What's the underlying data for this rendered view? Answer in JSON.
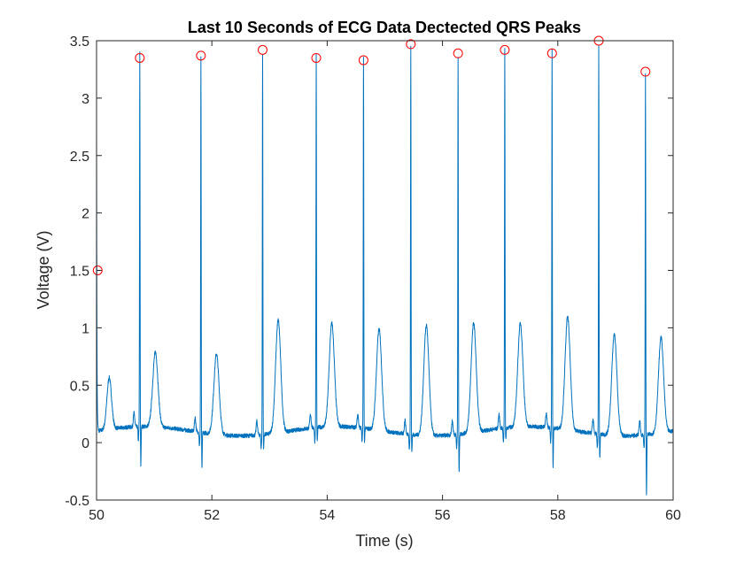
{
  "chart_data": {
    "type": "line",
    "title": "Last 10 Seconds of ECG Data Dectected QRS Peaks",
    "xlabel": "Time (s)",
    "ylabel": "Voltage (V)",
    "xlim": [
      50,
      60
    ],
    "ylim": [
      -0.5,
      3.5
    ],
    "xticks": [
      50,
      52,
      54,
      56,
      58,
      60
    ],
    "yticks": [
      -0.5,
      0,
      0.5,
      1,
      1.5,
      2,
      2.5,
      3,
      3.5
    ],
    "grid": false,
    "series": [
      {
        "kind": "ecg-line",
        "color": "#0072BD",
        "start_value": 2.7,
        "baseline_value": 0.1,
        "beats": [
          {
            "t": 50.75,
            "r": 3.35,
            "s": -0.24,
            "t_wave": 0.75
          },
          {
            "t": 51.81,
            "r": 3.37,
            "s": -0.22,
            "t_wave": 0.8
          },
          {
            "t": 52.88,
            "r": 3.42,
            "s": -0.01,
            "t_wave": 1.08
          },
          {
            "t": 53.81,
            "r": 3.35,
            "s": -0.02,
            "t_wave": 1.0
          },
          {
            "t": 54.63,
            "r": 3.33,
            "s": -0.01,
            "t_wave": 0.98
          },
          {
            "t": 55.45,
            "r": 3.47,
            "s": -0.05,
            "t_wave": 1.06
          },
          {
            "t": 56.27,
            "r": 3.39,
            "s": -0.24,
            "t_wave": 1.05
          },
          {
            "t": 57.08,
            "r": 3.42,
            "s": -0.01,
            "t_wave": 1.0
          },
          {
            "t": 57.9,
            "r": 3.39,
            "s": -0.24,
            "t_wave": 1.08
          },
          {
            "t": 58.71,
            "r": 3.5,
            "s": -0.12,
            "t_wave": 0.98
          },
          {
            "t": 59.52,
            "r": 3.23,
            "s": -0.42,
            "t_wave": 0.93
          }
        ]
      },
      {
        "kind": "peak-markers",
        "marker": "circle",
        "color": "#FF0000",
        "points": [
          {
            "x": 50.02,
            "y": 1.5
          },
          {
            "x": 50.75,
            "y": 3.35
          },
          {
            "x": 51.81,
            "y": 3.37
          },
          {
            "x": 52.88,
            "y": 3.42
          },
          {
            "x": 53.81,
            "y": 3.35
          },
          {
            "x": 54.63,
            "y": 3.33
          },
          {
            "x": 55.45,
            "y": 3.47
          },
          {
            "x": 56.27,
            "y": 3.39
          },
          {
            "x": 57.08,
            "y": 3.42
          },
          {
            "x": 57.9,
            "y": 3.39
          },
          {
            "x": 58.71,
            "y": 3.5
          },
          {
            "x": 59.52,
            "y": 3.23
          }
        ]
      }
    ]
  }
}
